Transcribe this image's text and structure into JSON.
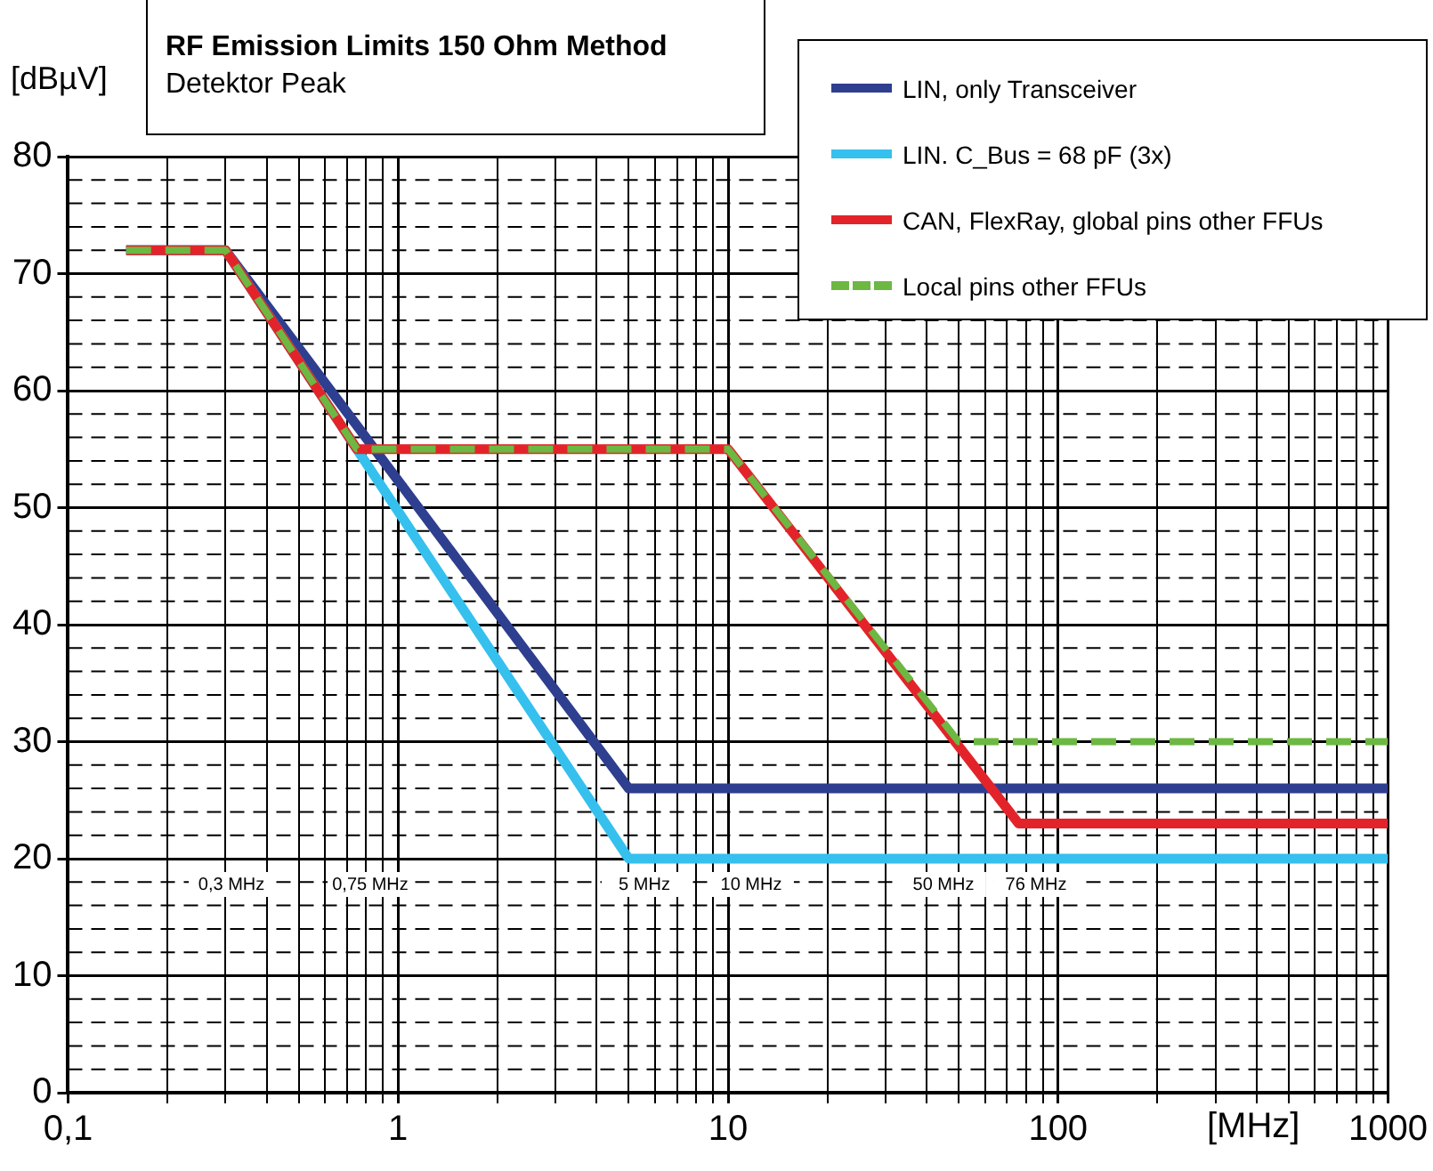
{
  "chart_data": {
    "type": "line",
    "title": "RF Emission Limits 150 Ohm Method",
    "subtitle": "Detektor Peak",
    "xlabel": "[MHz]",
    "ylabel": "[dBµV]",
    "log": "x",
    "xlim": [
      0.1,
      1000
    ],
    "ylim": [
      0,
      80
    ],
    "xticks": [
      {
        "value": 0.1,
        "label": "0,1"
      },
      {
        "value": 0.2,
        "label": null
      },
      {
        "value": 0.3,
        "label": null
      },
      {
        "value": 0.4,
        "label": null
      },
      {
        "value": 0.5,
        "label": null
      },
      {
        "value": 0.6,
        "label": null
      },
      {
        "value": 0.7,
        "label": null
      },
      {
        "value": 0.8,
        "label": null
      },
      {
        "value": 0.9,
        "label": null
      },
      1,
      {
        "value": 2,
        "label": null
      },
      {
        "value": 3,
        "label": null
      },
      {
        "value": 4,
        "label": null
      },
      {
        "value": 5,
        "label": null
      },
      {
        "value": 6,
        "label": null
      },
      {
        "value": 7,
        "label": null
      },
      {
        "value": 8,
        "label": null
      },
      {
        "value": 9,
        "label": null
      },
      10,
      {
        "value": 20,
        "label": null
      },
      {
        "value": 30,
        "label": null
      },
      {
        "value": 40,
        "label": null
      },
      {
        "value": 50,
        "label": null
      },
      {
        "value": 60,
        "label": null
      },
      {
        "value": 70,
        "label": null
      },
      {
        "value": 80,
        "label": null
      },
      {
        "value": 90,
        "label": null
      },
      100,
      {
        "value": 200,
        "label": null
      },
      {
        "value": 300,
        "label": null
      },
      {
        "value": 400,
        "label": null
      },
      {
        "value": 500,
        "label": null
      },
      {
        "value": 600,
        "label": null
      },
      {
        "value": 700,
        "label": null
      },
      {
        "value": 800,
        "label": null
      },
      {
        "value": 900,
        "label": null
      },
      1000
    ],
    "yticks": [
      0,
      {
        "value": 2,
        "label": null
      },
      {
        "value": 4,
        "label": null
      },
      {
        "value": 6,
        "label": null
      },
      {
        "value": 8,
        "label": null
      },
      10,
      {
        "value": 12,
        "label": null
      },
      {
        "value": 14,
        "label": null
      },
      {
        "value": 16,
        "label": null
      },
      {
        "value": 18,
        "label": null
      },
      20,
      {
        "value": 22,
        "label": null
      },
      {
        "value": 24,
        "label": null
      },
      {
        "value": 26,
        "label": null
      },
      {
        "value": 28,
        "label": null
      },
      30,
      {
        "value": 32,
        "label": null
      },
      {
        "value": 34,
        "label": null
      },
      {
        "value": 36,
        "label": null
      },
      {
        "value": 38,
        "label": null
      },
      40,
      {
        "value": 42,
        "label": null
      },
      {
        "value": 44,
        "label": null
      },
      {
        "value": 46,
        "label": null
      },
      {
        "value": 48,
        "label": null
      },
      50,
      {
        "value": 52,
        "label": null
      },
      {
        "value": 54,
        "label": null
      },
      {
        "value": 56,
        "label": null
      },
      {
        "value": 58,
        "label": null
      },
      60,
      {
        "value": 62,
        "label": null
      },
      {
        "value": 64,
        "label": null
      },
      {
        "value": 66,
        "label": null
      },
      {
        "value": 68,
        "label": null
      },
      70,
      {
        "value": 72,
        "label": null
      },
      {
        "value": 74,
        "label": null
      },
      {
        "value": 76,
        "label": null
      },
      {
        "value": 78,
        "label": null
      },
      80
    ],
    "grid": true,
    "legend": "top right",
    "marker": "none",
    "series": [
      {
        "name": "LIN, only Transceiver",
        "color": "#2e3f8f",
        "line_style": "solid",
        "x": [
          0.15,
          0.3,
          5,
          1000
        ],
        "values": [
          72,
          72,
          26,
          26
        ]
      },
      {
        "name": "LIN. C_Bus = 68 pF (3x)",
        "color": "#35c0ee",
        "line_style": "solid",
        "x": [
          0.15,
          0.3,
          0.75,
          5,
          1000
        ],
        "values": [
          72,
          72,
          55,
          20,
          20
        ]
      },
      {
        "name": "CAN, FlexRay, global pins other FFUs",
        "color": "#e2242a",
        "line_style": "solid",
        "x": [
          0.15,
          0.3,
          0.75,
          10,
          76,
          1000
        ],
        "values": [
          72,
          72,
          55,
          55,
          23,
          23
        ]
      },
      {
        "name": "Local pins other FFUs",
        "color": "#6cb842",
        "line_style": "dashed",
        "x": [
          0.15,
          0.3,
          0.75,
          10,
          50,
          1000
        ],
        "values": [
          72,
          72,
          55,
          55,
          30,
          30
        ]
      }
    ],
    "annotations": [
      "0,3 MHz",
      "0,75 MHz",
      "5 MHz",
      "10 MHz",
      "50 MHz",
      "76 MHz"
    ]
  }
}
